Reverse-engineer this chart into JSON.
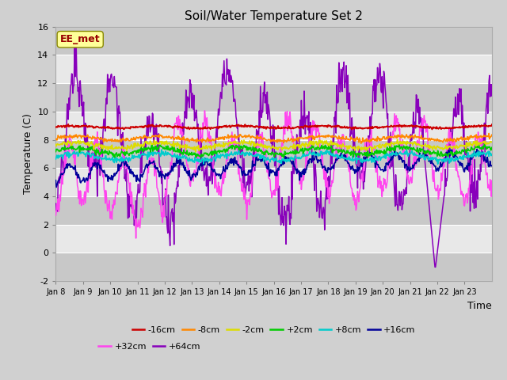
{
  "title": "Soil/Water Temperature Set 2",
  "xlabel": "Time",
  "ylabel": "Temperature (C)",
  "ylim": [
    -2,
    16
  ],
  "yticks": [
    -2,
    0,
    2,
    4,
    6,
    8,
    10,
    12,
    14,
    16
  ],
  "n_days": 16,
  "bg_outer": "#d0d0d0",
  "bg_inner": "#e8e8e8",
  "band_dark": "#c8c8c8",
  "annotation": "EE_met",
  "annotation_fgcolor": "#990000",
  "annotation_bgcolor": "#ffff99",
  "annotation_edgecolor": "#888800",
  "series_colors": {
    "-16cm": "#cc0000",
    "-8cm": "#ff8800",
    "-2cm": "#dddd00",
    "+2cm": "#00cc00",
    "+8cm": "#00cccc",
    "+16cm": "#000099",
    "+32cm": "#ff44ee",
    "+64cm": "#8800bb"
  },
  "legend_order": [
    "-16cm",
    "-8cm",
    "-2cm",
    "+2cm",
    "+8cm",
    "+16cm",
    "+32cm",
    "+64cm"
  ],
  "xtick_labels": [
    "Jan 8",
    "Jan 9",
    "Jan 10",
    "Jan 11",
    "Jan 12",
    "Jan 13",
    "Jan 14",
    "Jan 15",
    "Jan 16",
    "Jan 17",
    "Jan 18",
    "Jan 19",
    "Jan 20",
    "Jan 21",
    "Jan 22",
    "Jan 23"
  ]
}
